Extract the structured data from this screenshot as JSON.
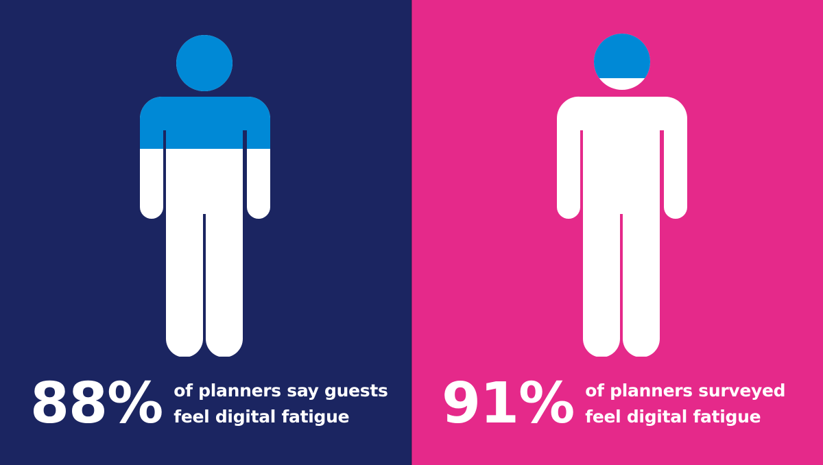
{
  "colors": {
    "left_background": "#1b2561",
    "right_background": "#e5298a",
    "accent_fill": "#0089d6",
    "figure_base": "#ffffff"
  },
  "panels": [
    {
      "percent_text": "88%",
      "caption_line1": "of planners say guests",
      "caption_line2": "feel digital fatigue",
      "icon": "person-icon",
      "fill_note": "blue fill covers head and upper torso"
    },
    {
      "percent_text": "91%",
      "caption_line1": "of planners surveyed",
      "caption_line2": "feel digital fatigue",
      "icon": "person-icon",
      "fill_note": "blue fill covers most of head only"
    }
  ]
}
